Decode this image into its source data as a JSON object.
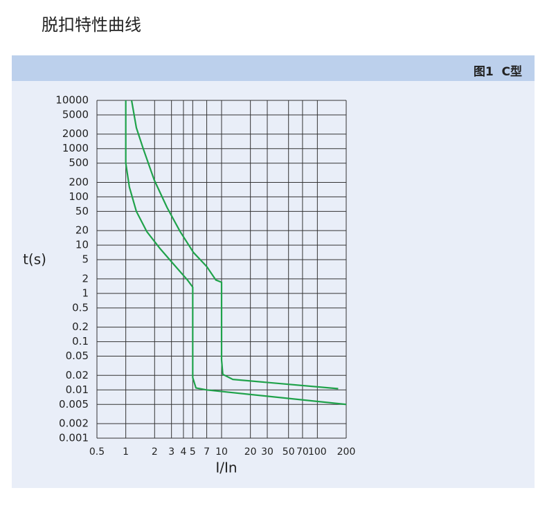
{
  "page_title": "脱扣特性曲线",
  "panel_label": "图1  C型",
  "chart_data": {
    "type": "line",
    "x_label": "I/In",
    "y_label": "t(s)",
    "xscale": "log",
    "yscale": "log",
    "grid": true,
    "xlim": [
      0.5,
      200
    ],
    "ylim": [
      0.001,
      10000
    ],
    "xticks": [
      0.5,
      1,
      2,
      3,
      4,
      5,
      7,
      10,
      20,
      30,
      50,
      70,
      100,
      200
    ],
    "yticks": [
      10000,
      5000,
      2000,
      1000,
      500,
      200,
      100,
      50,
      20,
      10,
      5,
      2,
      1,
      0.5,
      0.2,
      0.1,
      0.05,
      0.02,
      0.01,
      0.005,
      0.002,
      0.001
    ],
    "series": [
      {
        "color": "#1fa24a",
        "x": [
          1,
          1,
          1,
          1.09,
          1.29,
          1.66,
          2.3,
          3.2,
          4.4,
          5,
          5,
          5.4,
          7,
          200
        ],
        "values": [
          10000,
          1000,
          500,
          160,
          50,
          19,
          8.3,
          3.9,
          1.9,
          1.35,
          0.018,
          0.011,
          0.01,
          0.005
        ]
      },
      {
        "color": "#1fa24a",
        "x": [
          1.15,
          1.29,
          1.52,
          1.98,
          2.7,
          3.7,
          5.1,
          7,
          8.7,
          10,
          10,
          10.3,
          13.1,
          165
        ],
        "values": [
          10000,
          2700,
          1000,
          225,
          60,
          19,
          7,
          3.6,
          1.9,
          1.7,
          0.042,
          0.021,
          0.0165,
          0.0106
        ]
      }
    ]
  }
}
